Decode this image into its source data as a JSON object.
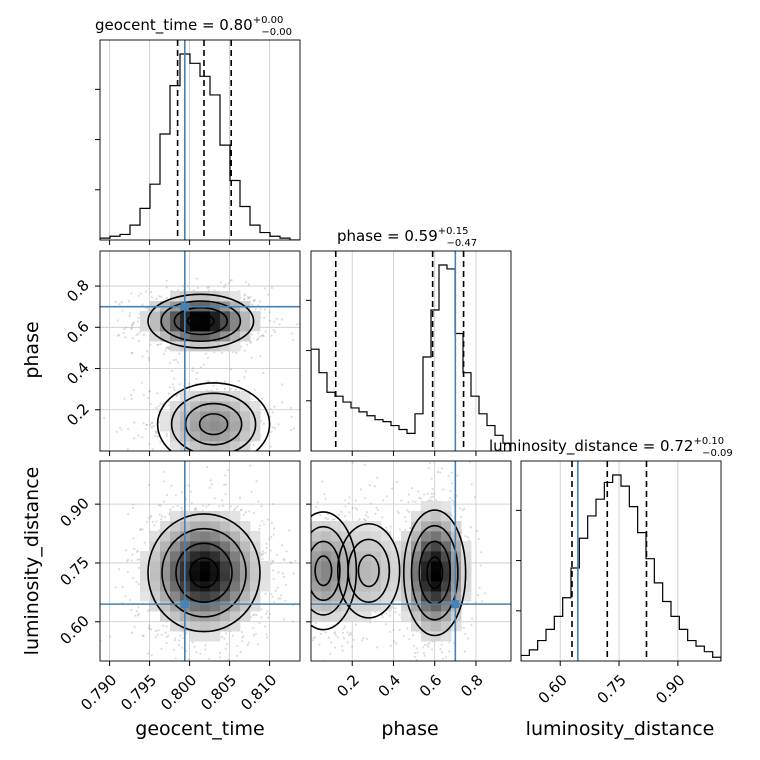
{
  "chart_data": {
    "type": "corner",
    "parameters": [
      "geocent_time",
      "phase",
      "luminosity_distance"
    ],
    "truths": {
      "geocent_time": 0.7994,
      "phase": 0.7,
      "luminosity_distance": 0.645
    },
    "titles": [
      {
        "prefix": "geocent_time = 0.80",
        "plus": "+0.00",
        "minus": "−0.00"
      },
      {
        "prefix": "phase = 0.59",
        "plus": "+0.15",
        "minus": "−0.47"
      },
      {
        "prefix": "luminosity_distance = 0.72",
        "plus": "+0.10",
        "minus": "−0.09"
      }
    ],
    "axis_labels": {
      "x": [
        "geocent_time",
        "phase",
        "luminosity_distance"
      ],
      "y": [
        "phase",
        "luminosity_distance"
      ]
    },
    "ranges": {
      "geocent_time": [
        0.7888,
        0.8138
      ],
      "phase": [
        0.0,
        0.97
      ],
      "luminosity_distance": [
        0.5,
        1.01
      ]
    },
    "ticks": {
      "geocent_time": {
        "values": [
          0.79,
          0.795,
          0.8,
          0.805,
          0.81
        ],
        "labels": [
          "0.790",
          "0.795",
          "0.800",
          "0.805",
          "0.810"
        ]
      },
      "phase": {
        "values": [
          0.2,
          0.4,
          0.6,
          0.8
        ],
        "labels": [
          "0.2",
          "0.4",
          "0.6",
          "0.8"
        ]
      },
      "luminosity_distance": {
        "values": [
          0.6,
          0.75,
          0.9
        ],
        "labels": [
          "0.60",
          "0.75",
          "0.90"
        ]
      }
    },
    "quantiles": {
      "geocent_time": [
        0.7985,
        0.8018,
        0.8052
      ],
      "phase": [
        0.12,
        0.59,
        0.74
      ],
      "luminosity_distance": [
        0.63,
        0.72,
        0.82
      ]
    },
    "histograms": {
      "geocent_time": {
        "counts": [
          1,
          2,
          3,
          8,
          17,
          30,
          57,
          83,
          100,
          95,
          88,
          78,
          51,
          32,
          18,
          8,
          4,
          2,
          1,
          0
        ]
      },
      "phase": {
        "counts": [
          52,
          40,
          30,
          28,
          25,
          22,
          20,
          18,
          16,
          15,
          13,
          11,
          9,
          19,
          48,
          72,
          95,
          93,
          60,
          40,
          28,
          19,
          13,
          8,
          4
        ]
      },
      "luminosity_distance": {
        "counts": [
          3,
          6,
          11,
          17,
          24,
          34,
          50,
          66,
          78,
          87,
          96,
          100,
          94,
          83,
          69,
          55,
          42,
          32,
          24,
          17,
          11,
          8,
          5,
          2
        ]
      }
    },
    "grid": true,
    "truth_color": "#4682b4",
    "contour_color": "#000000"
  }
}
